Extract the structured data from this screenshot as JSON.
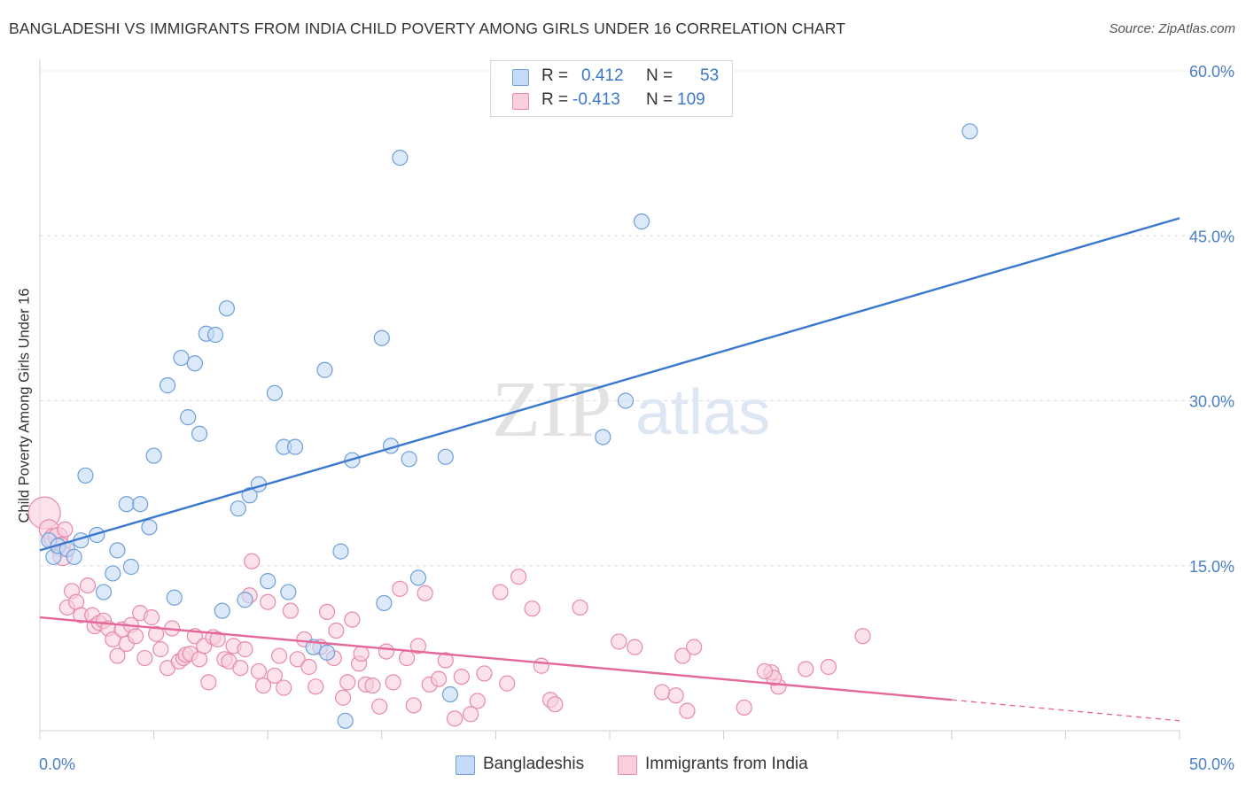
{
  "title": "BANGLADESHI VS IMMIGRANTS FROM INDIA CHILD POVERTY AMONG GIRLS UNDER 16 CORRELATION CHART",
  "source": "Source: ZipAtlas.com",
  "watermark": {
    "zip": "ZIP",
    "atlas": "atlas"
  },
  "legend_top": [
    {
      "r_label": "R = ",
      "r_value": "0.412",
      "n_label": "N = ",
      "n_value": "53",
      "color": "#aac8ef",
      "border": "#6e9fd9"
    },
    {
      "r_label": "R = ",
      "r_value": "-0.413",
      "n_label": "N = ",
      "n_value": "109",
      "color": "#f6bcd0",
      "border": "#e88aa9"
    }
  ],
  "chart_data": {
    "type": "scatter",
    "title": "BANGLADESHI VS IMMIGRANTS FROM INDIA CHILD POVERTY AMONG GIRLS UNDER 16 CORRELATION CHART",
    "ylabel": "Child Poverty Among Girls Under 16",
    "xlabel": "",
    "xlim": [
      0,
      50
    ],
    "ylim": [
      0,
      60
    ],
    "x_tick_labels": [
      "0.0%",
      "50.0%"
    ],
    "y_tick_labels": [
      "15.0%",
      "30.0%",
      "45.0%",
      "60.0%"
    ],
    "y_ticks": [
      15,
      30,
      45,
      60
    ],
    "grid": true,
    "legend_position": "bottom",
    "series": [
      {
        "name": "Bangladeshis",
        "color": "#6e9fd9",
        "fill": "#c5daf5",
        "trend": {
          "x": [
            0,
            50
          ],
          "y": [
            16.4,
            46.6
          ]
        },
        "points": [
          [
            0.4,
            17.3
          ],
          [
            0.6,
            15.8
          ],
          [
            0.8,
            16.8
          ],
          [
            1.2,
            16.5
          ],
          [
            1.5,
            15.8
          ],
          [
            1.8,
            17.3
          ],
          [
            2.0,
            23.2
          ],
          [
            2.5,
            17.8
          ],
          [
            2.8,
            12.6
          ],
          [
            3.2,
            14.3
          ],
          [
            3.4,
            16.4
          ],
          [
            3.8,
            20.6
          ],
          [
            4.0,
            14.9
          ],
          [
            4.4,
            20.6
          ],
          [
            4.8,
            18.5
          ],
          [
            5.0,
            25.0
          ],
          [
            5.6,
            31.4
          ],
          [
            5.9,
            12.1
          ],
          [
            6.2,
            33.9
          ],
          [
            6.5,
            28.5
          ],
          [
            6.8,
            33.4
          ],
          [
            7.0,
            27.0
          ],
          [
            7.3,
            36.1
          ],
          [
            7.7,
            36.0
          ],
          [
            8.0,
            10.9
          ],
          [
            8.2,
            38.4
          ],
          [
            8.7,
            20.2
          ],
          [
            9.0,
            11.9
          ],
          [
            9.2,
            21.4
          ],
          [
            9.6,
            22.4
          ],
          [
            10.0,
            13.6
          ],
          [
            10.3,
            30.7
          ],
          [
            10.7,
            25.8
          ],
          [
            10.9,
            12.6
          ],
          [
            11.2,
            25.8
          ],
          [
            12.0,
            7.6
          ],
          [
            12.5,
            32.8
          ],
          [
            12.6,
            7.1
          ],
          [
            13.2,
            16.3
          ],
          [
            13.4,
            0.9
          ],
          [
            13.7,
            24.6
          ],
          [
            15.0,
            35.7
          ],
          [
            15.1,
            11.6
          ],
          [
            15.4,
            25.9
          ],
          [
            15.8,
            52.1
          ],
          [
            16.2,
            24.7
          ],
          [
            16.6,
            13.9
          ],
          [
            17.8,
            24.9
          ],
          [
            18.0,
            3.3
          ],
          [
            24.7,
            26.7
          ],
          [
            25.7,
            30.0
          ],
          [
            26.4,
            46.3
          ],
          [
            40.8,
            54.5
          ]
        ]
      },
      {
        "name": "Immigrants from India",
        "color": "#e88aa9",
        "fill": "#f9cfdd",
        "trend": {
          "x": [
            0,
            40
          ],
          "y": [
            10.3,
            2.8
          ]
        },
        "trend_dashed": {
          "x": [
            40,
            50
          ],
          "y": [
            2.8,
            0.9
          ]
        },
        "points": [
          [
            0.2,
            19.8
          ],
          [
            0.4,
            18.3
          ],
          [
            0.6,
            17.5
          ],
          [
            0.8,
            17.6
          ],
          [
            0.9,
            16.7
          ],
          [
            1.0,
            15.9
          ],
          [
            1.1,
            18.3
          ],
          [
            1.2,
            11.2
          ],
          [
            1.4,
            12.7
          ],
          [
            1.6,
            11.7
          ],
          [
            1.8,
            10.5
          ],
          [
            2.1,
            13.2
          ],
          [
            2.3,
            10.5
          ],
          [
            2.4,
            9.5
          ],
          [
            2.6,
            9.8
          ],
          [
            2.8,
            10.0
          ],
          [
            3.0,
            9.3
          ],
          [
            3.2,
            8.3
          ],
          [
            3.4,
            6.8
          ],
          [
            3.6,
            9.2
          ],
          [
            3.8,
            7.9
          ],
          [
            4.0,
            9.6
          ],
          [
            4.2,
            8.6
          ],
          [
            4.4,
            10.7
          ],
          [
            4.6,
            6.6
          ],
          [
            4.9,
            10.3
          ],
          [
            5.1,
            8.8
          ],
          [
            5.3,
            7.4
          ],
          [
            5.6,
            5.7
          ],
          [
            5.8,
            9.3
          ],
          [
            6.1,
            6.3
          ],
          [
            6.3,
            6.6
          ],
          [
            6.4,
            6.9
          ],
          [
            6.6,
            7.0
          ],
          [
            6.8,
            8.6
          ],
          [
            7.0,
            6.5
          ],
          [
            7.2,
            7.7
          ],
          [
            7.4,
            4.4
          ],
          [
            7.6,
            8.5
          ],
          [
            7.8,
            8.3
          ],
          [
            8.1,
            6.5
          ],
          [
            8.3,
            6.3
          ],
          [
            8.5,
            7.7
          ],
          [
            8.8,
            5.7
          ],
          [
            9.0,
            7.4
          ],
          [
            9.2,
            12.3
          ],
          [
            9.3,
            15.4
          ],
          [
            9.6,
            5.4
          ],
          [
            9.8,
            4.1
          ],
          [
            10.0,
            11.7
          ],
          [
            10.3,
            5.0
          ],
          [
            10.5,
            6.8
          ],
          [
            10.7,
            3.9
          ],
          [
            11.0,
            10.9
          ],
          [
            11.3,
            6.5
          ],
          [
            11.6,
            8.3
          ],
          [
            11.8,
            5.8
          ],
          [
            12.1,
            4.0
          ],
          [
            12.3,
            7.6
          ],
          [
            12.6,
            10.8
          ],
          [
            12.9,
            6.6
          ],
          [
            13.0,
            9.1
          ],
          [
            13.3,
            3.0
          ],
          [
            13.5,
            4.4
          ],
          [
            13.7,
            10.1
          ],
          [
            14.0,
            6.1
          ],
          [
            14.1,
            7.0
          ],
          [
            14.3,
            4.2
          ],
          [
            14.6,
            4.1
          ],
          [
            14.9,
            2.2
          ],
          [
            15.2,
            7.2
          ],
          [
            15.5,
            4.4
          ],
          [
            15.8,
            12.9
          ],
          [
            16.1,
            6.6
          ],
          [
            16.4,
            2.3
          ],
          [
            16.6,
            7.7
          ],
          [
            16.9,
            12.5
          ],
          [
            17.1,
            4.2
          ],
          [
            17.5,
            4.7
          ],
          [
            17.8,
            6.4
          ],
          [
            18.2,
            1.1
          ],
          [
            18.5,
            4.9
          ],
          [
            18.9,
            1.5
          ],
          [
            19.2,
            2.7
          ],
          [
            19.5,
            5.2
          ],
          [
            20.2,
            12.6
          ],
          [
            20.5,
            4.3
          ],
          [
            21.0,
            14.0
          ],
          [
            21.6,
            11.1
          ],
          [
            22.0,
            5.9
          ],
          [
            22.4,
            2.8
          ],
          [
            22.6,
            2.4
          ],
          [
            23.7,
            11.2
          ],
          [
            25.4,
            8.1
          ],
          [
            26.1,
            7.6
          ],
          [
            27.3,
            3.5
          ],
          [
            28.2,
            6.8
          ],
          [
            28.4,
            1.8
          ],
          [
            28.7,
            7.6
          ],
          [
            30.9,
            2.1
          ],
          [
            32.1,
            5.3
          ],
          [
            32.4,
            4.0
          ],
          [
            33.6,
            5.6
          ],
          [
            34.6,
            5.8
          ],
          [
            36.1,
            8.6
          ],
          [
            32.2,
            4.8
          ],
          [
            31.8,
            5.4
          ],
          [
            27.9,
            3.2
          ]
        ]
      }
    ]
  },
  "bottom_legend": [
    {
      "label": "Bangladeshis",
      "color": "#c5daf5",
      "border": "#6e9fd9"
    },
    {
      "label": "Immigrants from India",
      "color": "#f9cfdd",
      "border": "#e88aa9"
    }
  ]
}
